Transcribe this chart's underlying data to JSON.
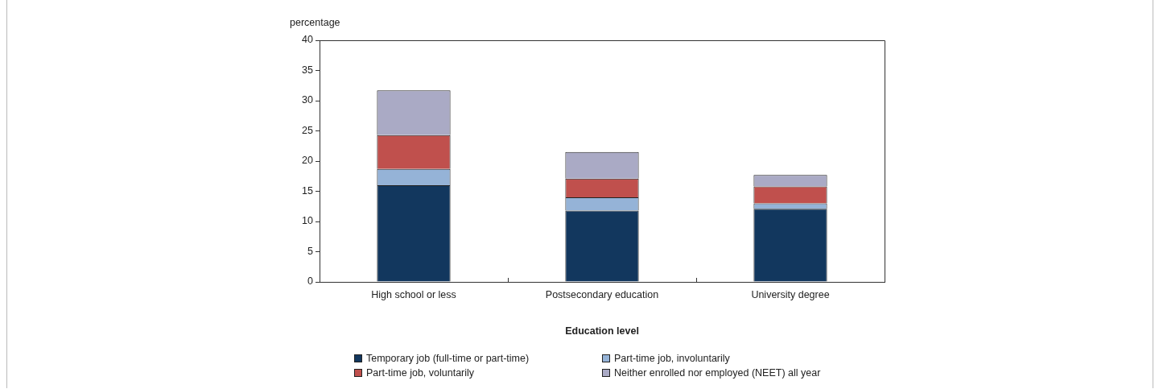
{
  "chart_data": {
    "type": "bar",
    "stacked": true,
    "ylabel": "percentage",
    "xlabel": "Education level",
    "categories": [
      "High school or less",
      "Postsecondary education",
      "University degree"
    ],
    "series": [
      {
        "name": "Temporary job (full-time or part-time)",
        "color": "#12375e",
        "values": [
          16.0,
          11.8,
          12.1
        ]
      },
      {
        "name": "Part-time job, involuntarily",
        "color": "#95b3d7",
        "values": [
          2.7,
          2.2,
          0.9
        ]
      },
      {
        "name": "Part-time job, voluntarily",
        "color": "#c0504d",
        "values": [
          5.6,
          3.1,
          2.8
        ]
      },
      {
        "name": "Neither enrolled nor employed (NEET) all year",
        "color": "#aaaac5",
        "values": [
          7.4,
          4.4,
          1.9
        ]
      }
    ],
    "ylim": [
      0,
      40
    ],
    "yticks": [
      0,
      5,
      10,
      15,
      20,
      25,
      30,
      35,
      40
    ],
    "grid": false,
    "legend": "bottom"
  }
}
